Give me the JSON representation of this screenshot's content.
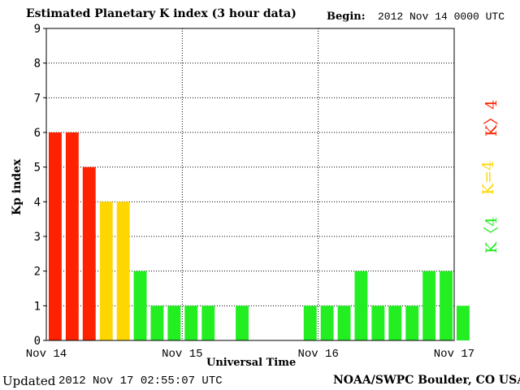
{
  "header": {
    "title": "Estimated Planetary K index (3 hour data)",
    "begin_label": "Begin:",
    "begin_value": "2012 Nov 14 0000 UTC"
  },
  "footer": {
    "updated_label": "Updated",
    "updated_value": "2012 Nov 17 02:55:07 UTC",
    "source": "NOAA/SWPC Boulder, CO USA"
  },
  "legend": {
    "gt4": {
      "label": "K〉4",
      "color": "#ff2200"
    },
    "eq4": {
      "label": "K=4",
      "color": "#ffd700"
    },
    "lt4": {
      "label": "K〈4",
      "color": "#22ee22"
    }
  },
  "chart_data": {
    "type": "bar",
    "ylabel": "Kp index",
    "xlabel": "Universal Time",
    "ylim": [
      0,
      9
    ],
    "y_ticks": [
      "0",
      "1",
      "2",
      "3",
      "4",
      "5",
      "6",
      "7",
      "8",
      "9"
    ],
    "x_tick_labels": [
      "Nov 14",
      "Nov 15",
      "Nov 16",
      "Nov 17"
    ],
    "bin_hours": 3,
    "values": [
      6,
      6,
      5,
      4,
      4,
      2,
      1,
      1,
      1,
      1,
      null,
      1,
      null,
      null,
      null,
      1,
      1,
      1,
      2,
      1,
      1,
      1,
      2,
      2,
      1
    ],
    "colors": {
      "above4": "#ff2200",
      "equal4": "#ffd700",
      "below4": "#22ee22"
    },
    "grid": true
  }
}
